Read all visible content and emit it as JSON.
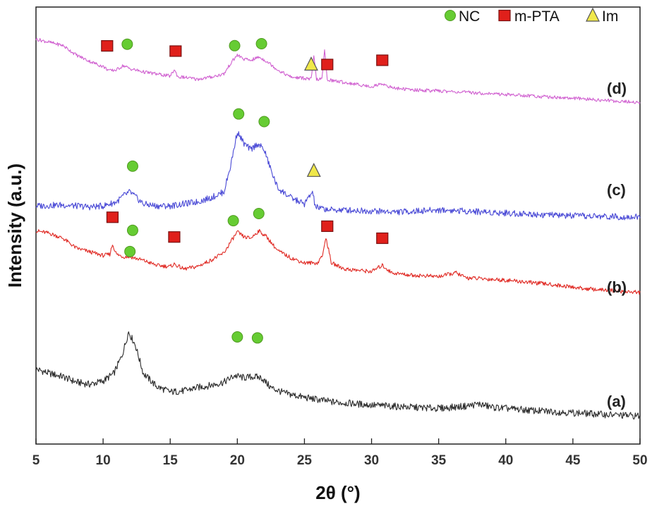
{
  "chart_data": {
    "type": "line",
    "xlabel": "2θ (°)",
    "ylabel": "Intensity (a.u.)",
    "xlim": [
      5,
      50
    ],
    "x_ticks": [
      5,
      10,
      15,
      20,
      25,
      30,
      35,
      40,
      45,
      50
    ],
    "y_ticks_shown": false,
    "grid": false,
    "legend_position": "top-right",
    "legend": [
      {
        "marker": "circle",
        "label": "NC",
        "color": "#66cc33"
      },
      {
        "marker": "square",
        "label": "m-PTA",
        "color": "#e0201b"
      },
      {
        "marker": "triangle",
        "label": "Im",
        "color": "#f0e84a"
      }
    ],
    "series": [
      {
        "name": "(a)",
        "color": "#2b2b2b",
        "x": [
          5,
          6,
          7,
          8,
          9,
          10,
          10.8,
          11.4,
          11.9,
          12.4,
          13,
          14,
          15,
          16,
          17,
          18,
          19,
          19.8,
          20.5,
          21.2,
          21.8,
          22.5,
          23.5,
          25,
          27,
          30,
          33,
          35,
          37,
          38,
          39,
          42,
          45,
          48,
          50
        ],
        "y": [
          24,
          22,
          20.5,
          18,
          17,
          18.5,
          22,
          30,
          41,
          35,
          22,
          16,
          13.5,
          14,
          15.5,
          16.5,
          18,
          21,
          20,
          20.5,
          20,
          15.5,
          13,
          11,
          9,
          7.5,
          6.5,
          6,
          7,
          8,
          6.5,
          5,
          4,
          3,
          2.5
        ]
      },
      {
        "name": "(b)",
        "color": "#e02a24",
        "x": [
          5,
          6,
          7,
          8,
          9,
          10,
          10.5,
          10.7,
          11,
          11.5,
          12,
          13,
          14,
          15,
          15.3,
          16,
          17,
          18,
          19,
          19.5,
          20,
          20.5,
          21,
          21.6,
          22.2,
          23,
          24,
          25,
          26,
          26.4,
          26.6,
          27,
          28,
          29,
          30,
          30.8,
          31.5,
          33,
          35,
          36.3,
          37,
          40,
          43,
          46,
          50
        ],
        "y": [
          70,
          68,
          64,
          56,
          53,
          50,
          51,
          59,
          51,
          49,
          49,
          46,
          42,
          41,
          43,
          39,
          41,
          46,
          52,
          61,
          69,
          65,
          64,
          70,
          65,
          54,
          48,
          44,
          44,
          52,
          65,
          44,
          39,
          38,
          37,
          42,
          36,
          34,
          33,
          36,
          32,
          30,
          27,
          23,
          20
        ]
      },
      {
        "name": "(c)",
        "color": "#4a4ad6",
        "x": [
          5,
          7,
          9,
          10,
          11,
          11.5,
          12,
          12.5,
          13,
          14,
          15,
          16,
          17,
          18,
          19,
          19.5,
          20,
          20.5,
          21,
          21.5,
          22,
          22.5,
          23,
          24,
          25,
          25.6,
          25.8,
          26,
          27,
          28,
          30,
          32,
          35,
          37,
          40,
          45,
          50
        ],
        "y": [
          8,
          8.5,
          7.5,
          8,
          10,
          13,
          15,
          12,
          9,
          8,
          8,
          9,
          10,
          12,
          15,
          28,
          45,
          39,
          36,
          39,
          36,
          26,
          17,
          12,
          9,
          15,
          8,
          7,
          6,
          6,
          5.5,
          5,
          6,
          5.5,
          4.5,
          3,
          2.5
        ]
      },
      {
        "name": "(d)",
        "color": "#d060d0",
        "x": [
          5,
          6,
          7,
          8,
          9,
          10,
          10.5,
          11,
          11.5,
          12,
          13,
          14,
          15,
          15.3,
          15.6,
          16,
          17,
          18,
          19,
          19.5,
          20,
          20.5,
          21,
          21.6,
          22.2,
          23,
          24,
          25,
          25.5,
          25.7,
          25.9,
          26.3,
          26.5,
          26.7,
          27,
          28,
          30,
          30.8,
          31.5,
          33,
          35,
          38,
          41,
          45,
          50
        ],
        "y": [
          73,
          70,
          67,
          58,
          52,
          47,
          43,
          44,
          48,
          45,
          42,
          40,
          38,
          44,
          37,
          37,
          35,
          37,
          40,
          50,
          58,
          54,
          53,
          56,
          52,
          44,
          37,
          36,
          35,
          57,
          35,
          35,
          62,
          35,
          34,
          32,
          28,
          31,
          27,
          25,
          24,
          22,
          20,
          17,
          13
        ]
      }
    ],
    "annotations": {
      "trace_labels": [
        "(a)",
        "(b)",
        "(c)",
        "(d)"
      ]
    }
  }
}
